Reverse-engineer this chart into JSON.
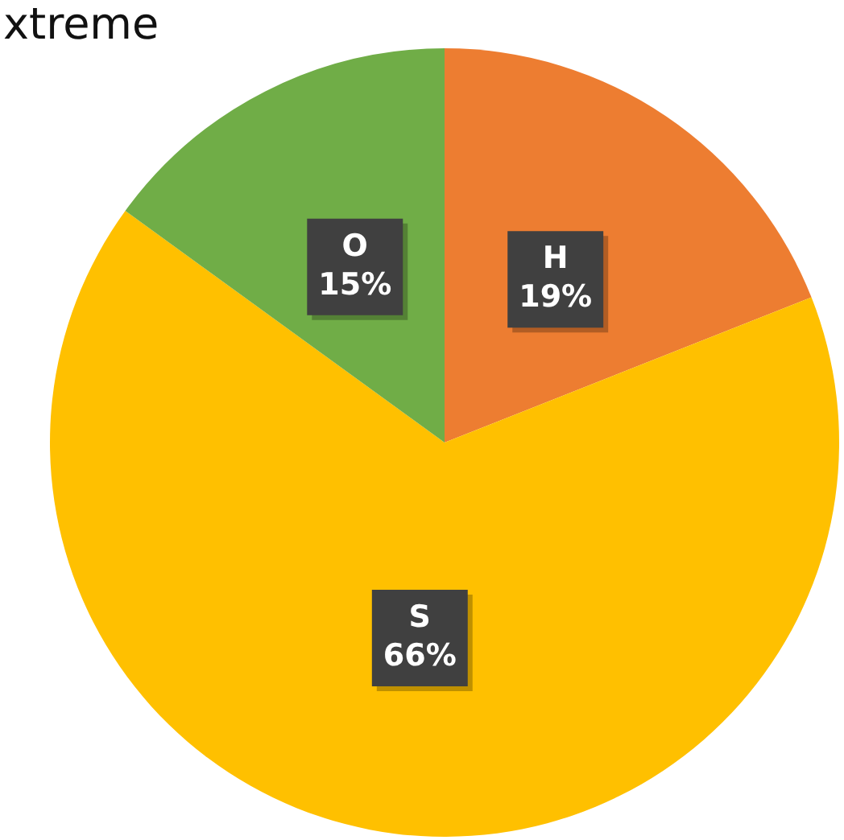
{
  "chart_data": {
    "type": "pie",
    "title": "xtreme",
    "categories": [
      "H",
      "S",
      "O"
    ],
    "values": [
      19,
      66,
      15
    ],
    "colors": [
      "#ed7d31",
      "#ffc000",
      "#70ad47"
    ],
    "value_labels": [
      "19%",
      "66%",
      "15%"
    ],
    "legend": false
  }
}
